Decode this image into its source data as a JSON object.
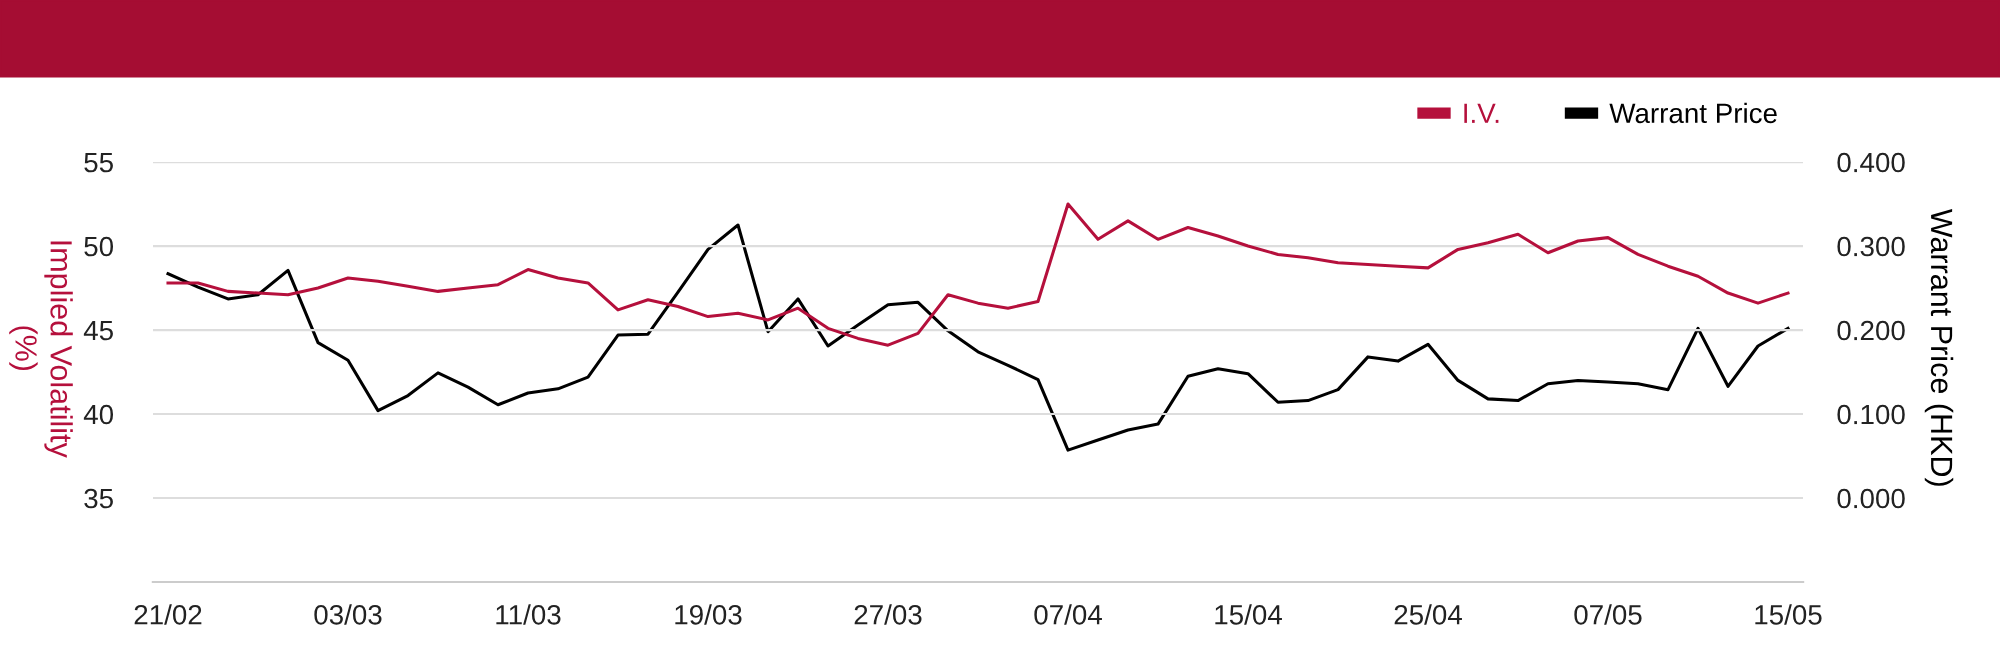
{
  "chart_data": {
    "type": "line",
    "categories": [
      "21/02",
      null,
      null,
      null,
      null,
      null,
      "03/03",
      null,
      null,
      null,
      null,
      null,
      "11/03",
      null,
      null,
      null,
      null,
      null,
      "19/03",
      null,
      null,
      null,
      null,
      null,
      "27/03",
      null,
      null,
      null,
      null,
      null,
      "07/04",
      null,
      null,
      null,
      null,
      null,
      "15/04",
      null,
      null,
      null,
      null,
      null,
      "25/04",
      null,
      null,
      null,
      null,
      null,
      "07/05",
      null,
      null,
      null,
      null,
      null,
      "15/05"
    ],
    "series": [
      {
        "name": "I.V.",
        "color": "#b5103c",
        "values": [
          47.8,
          47.8,
          47.3,
          47.2,
          47.1,
          47.5,
          48.1,
          47.9,
          47.6,
          47.3,
          47.5,
          47.7,
          48.6,
          48.1,
          47.8,
          46.2,
          46.8,
          46.4,
          45.8,
          46.0,
          45.6,
          46.3,
          45.1,
          44.5,
          44.1,
          44.8,
          47.1,
          46.6,
          46.3,
          46.7,
          52.5,
          50.4,
          51.5,
          50.4,
          51.1,
          50.6,
          50.0,
          49.5,
          49.3,
          49.0,
          48.9,
          48.8,
          48.7,
          49.8,
          50.2,
          50.7,
          49.6,
          50.3,
          50.5,
          49.5,
          48.8,
          48.2,
          47.2,
          46.6,
          47.2
        ]
      },
      {
        "name": "Warrant Price",
        "color": "#000000",
        "axis": "y2",
        "values": [
          0.267,
          0.251,
          0.237,
          0.242,
          0.271,
          0.185,
          0.164,
          0.104,
          0.122,
          0.149,
          0.132,
          0.111,
          0.125,
          0.13,
          0.144,
          0.194,
          0.195,
          0.245,
          0.296,
          0.325,
          0.198,
          0.237,
          0.181,
          0.206,
          0.23,
          0.233,
          0.199,
          0.174,
          0.158,
          0.141,
          0.057,
          0.069,
          0.081,
          0.088,
          0.145,
          0.154,
          0.148,
          0.114,
          0.116,
          0.129,
          0.168,
          0.163,
          0.183,
          0.14,
          0.118,
          0.116,
          0.136,
          0.14,
          0.138,
          0.136,
          0.129,
          0.202,
          0.133,
          0.181,
          0.202
        ]
      }
    ],
    "ylabel": "Implied Volatility\n(%)",
    "y2label": "Warrant Price (HKD)",
    "ylim": [
      30,
      55
    ],
    "yticks": [
      35,
      40,
      45,
      50,
      55
    ],
    "y2lim": [
      -0.1,
      0.4
    ],
    "y2ticks": [
      {
        "value": 0,
        "label": "0.000"
      },
      {
        "value": 0.1,
        "label": "0.100"
      },
      {
        "value": 0.2,
        "label": "0.200"
      },
      {
        "value": 0.3,
        "label": "0.300"
      },
      {
        "value": 0.4,
        "label": "0.400"
      }
    ],
    "grid": "y",
    "legend": "top right",
    "marker": "none",
    "line_style": "solid"
  }
}
